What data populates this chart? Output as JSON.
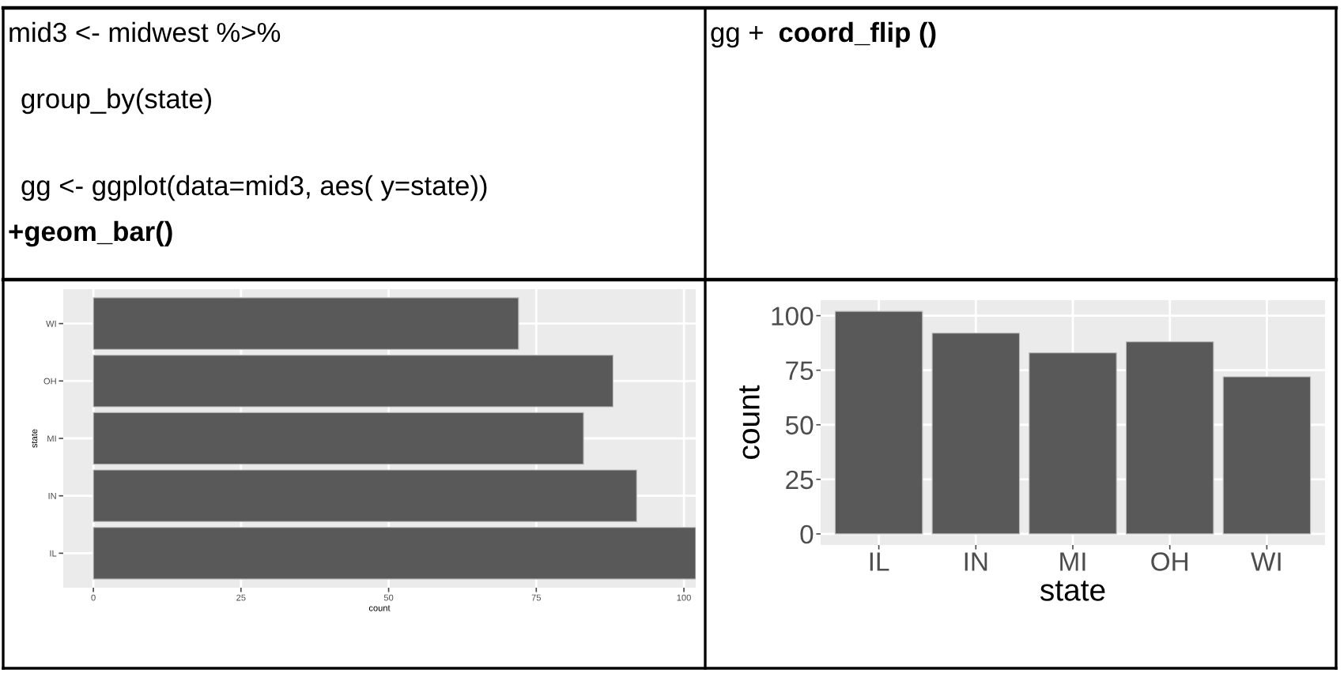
{
  "chart_data": [
    {
      "type": "bar",
      "orientation": "horizontal",
      "categories": [
        "WI",
        "OH",
        "MI",
        "IN",
        "IL"
      ],
      "values": [
        72,
        88,
        83,
        92,
        102
      ],
      "color": "#595959",
      "xlim": [
        -5.1,
        102
      ],
      "xticks": [
        0,
        25,
        50,
        75,
        100
      ],
      "xlabel": "count",
      "ylabel": "state",
      "grid": true,
      "annotations": [
        "mid3 <- midwest %>%",
        "group_by(state)",
        "gg <- ggplot(data=mid3, aes( y=state))",
        "+geom_bar()"
      ]
    },
    {
      "type": "bar",
      "categories": [
        "IL",
        "IN",
        "MI",
        "OH",
        "WI"
      ],
      "values": [
        102,
        92,
        83,
        88,
        72
      ],
      "color": "#595959",
      "ylim": [
        -5.1,
        107.1
      ],
      "yticks": [
        0,
        25,
        50,
        75,
        100
      ],
      "xlabel": "state",
      "ylabel": "count",
      "grid": true,
      "annotations": [
        "gg + ",
        "coord_flip ()"
      ]
    }
  ]
}
